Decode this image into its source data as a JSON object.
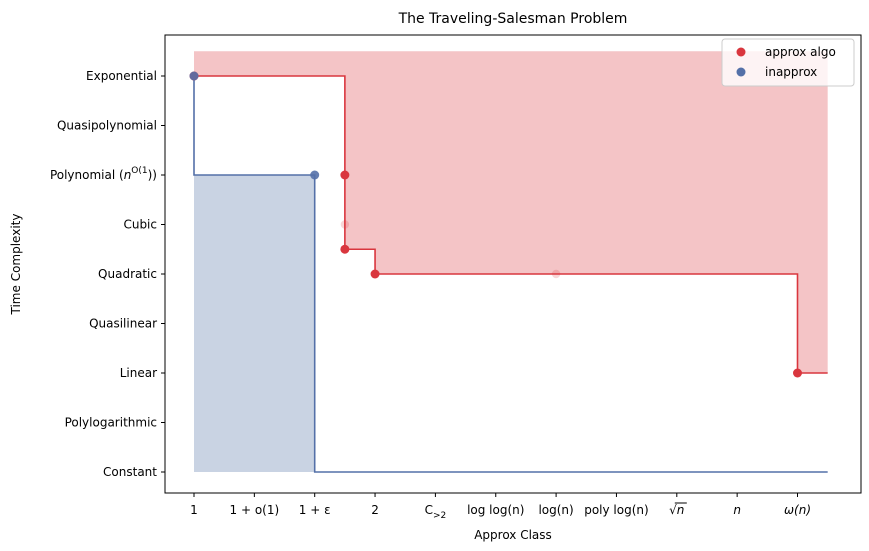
{
  "chart_data": {
    "type": "step",
    "title": "The Traveling-Salesman Problem",
    "xlabel": "Approx Class",
    "ylabel": "Time Complexity",
    "x_ticks": [
      {
        "label": "1",
        "value": 0
      },
      {
        "label": "1 + o(1)",
        "value": 1
      },
      {
        "label": "1 + ε",
        "value": 2
      },
      {
        "label": "2",
        "value": 3
      },
      {
        "label": "C>2",
        "value": 4
      },
      {
        "label": "log log(n)",
        "value": 5
      },
      {
        "label": "log(n)",
        "value": 6
      },
      {
        "label": "poly log(n)",
        "value": 7
      },
      {
        "label": "√n",
        "value": 8
      },
      {
        "label": "n",
        "value": 9
      },
      {
        "label": "ω(n)",
        "value": 10
      }
    ],
    "y_ticks": [
      {
        "label": "Constant",
        "value": 0
      },
      {
        "label": "Polylogarithmic",
        "value": 1
      },
      {
        "label": "Linear",
        "value": 2
      },
      {
        "label": "Quasilinear",
        "value": 3
      },
      {
        "label": "Quadratic",
        "value": 4
      },
      {
        "label": "Cubic",
        "value": 5
      },
      {
        "label": "Polynomial (n^O(1))",
        "value": 6
      },
      {
        "label": "Quasipolynomial",
        "value": 7
      },
      {
        "label": "Exponential",
        "value": 8
      }
    ],
    "xlim": [
      -0.55,
      11.0
    ],
    "ylim": [
      -0.45,
      9.1
    ],
    "legend_position": "top-right",
    "series": [
      {
        "name": "approx algo",
        "color": "#d9363e",
        "fill_color": "#f4c4c6",
        "step_path": [
          [
            0,
            8
          ],
          [
            2.5,
            8
          ],
          [
            2.5,
            4.5
          ],
          [
            3,
            4.5
          ],
          [
            3,
            4
          ],
          [
            10,
            4
          ],
          [
            10,
            2
          ],
          [
            10.5,
            2
          ]
        ],
        "fill_region": {
          "x_start": 0,
          "x_end": 10.5,
          "top": 8.5
        },
        "points": [
          {
            "x": 0,
            "y": 8
          },
          {
            "x": 2.5,
            "y": 6
          },
          {
            "x": 2.5,
            "y": 4.5
          },
          {
            "x": 3,
            "y": 4
          },
          {
            "x": 10,
            "y": 2
          }
        ],
        "faded_points": [
          {
            "x": 2.5,
            "y": 5
          },
          {
            "x": 6,
            "y": 4
          }
        ]
      },
      {
        "name": "inapprox",
        "color": "#5470a8",
        "fill_color": "#c9d3e3",
        "step_path": [
          [
            0,
            8
          ],
          [
            0,
            6
          ],
          [
            2,
            6
          ],
          [
            2,
            0
          ],
          [
            10.5,
            0
          ]
        ],
        "fill_region": {
          "x_start": 0,
          "x_end": 2,
          "top": 6,
          "bottom": 0
        },
        "points": [
          {
            "x": 0,
            "y": 8
          },
          {
            "x": 2,
            "y": 6
          }
        ]
      }
    ]
  }
}
